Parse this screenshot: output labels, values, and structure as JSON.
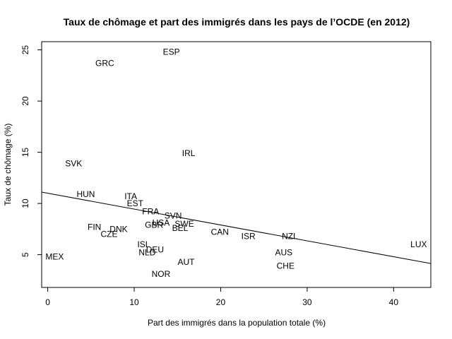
{
  "chart_data": {
    "type": "scatter",
    "title": "Taux de chômage et part des immigrés dans les pays de l’OCDE (en 2012)",
    "xlabel": "Part des immigrés dans la population totale (%)",
    "ylabel": "Taux de chômage (%)",
    "xlim": [
      -0.7,
      44.3
    ],
    "ylim": [
      1.8,
      25.8
    ],
    "x_ticks": [
      0,
      10,
      20,
      30,
      40
    ],
    "y_ticks": [
      5,
      10,
      15,
      20,
      25
    ],
    "grid": false,
    "points": [
      {
        "label": "ESP",
        "x": 14.3,
        "y": 24.8
      },
      {
        "label": "GRC",
        "x": 6.6,
        "y": 23.7
      },
      {
        "label": "IRL",
        "x": 16.3,
        "y": 14.9
      },
      {
        "label": "SVK",
        "x": 3.0,
        "y": 13.9
      },
      {
        "label": "HUN",
        "x": 4.4,
        "y": 10.9
      },
      {
        "label": "ITA",
        "x": 9.6,
        "y": 10.7
      },
      {
        "label": "EST",
        "x": 10.1,
        "y": 10.0
      },
      {
        "label": "FRA",
        "x": 11.9,
        "y": 9.2
      },
      {
        "label": "SVN",
        "x": 14.5,
        "y": 8.8
      },
      {
        "label": "GBR",
        "x": 12.3,
        "y": 7.9
      },
      {
        "label": "USA",
        "x": 13.1,
        "y": 8.1
      },
      {
        "label": "SWE",
        "x": 15.8,
        "y": 8.0
      },
      {
        "label": "BEL",
        "x": 15.3,
        "y": 7.6
      },
      {
        "label": "FIN",
        "x": 5.4,
        "y": 7.7
      },
      {
        "label": "DNK",
        "x": 8.2,
        "y": 7.5
      },
      {
        "label": "CZE",
        "x": 7.1,
        "y": 7.0
      },
      {
        "label": "CAN",
        "x": 19.9,
        "y": 7.2
      },
      {
        "label": "ISR",
        "x": 23.2,
        "y": 6.8
      },
      {
        "label": "NZL",
        "x": 28.0,
        "y": 6.8
      },
      {
        "label": "LUX",
        "x": 42.9,
        "y": 6.0
      },
      {
        "label": "ISL",
        "x": 11.1,
        "y": 6.0
      },
      {
        "label": "DEU",
        "x": 12.4,
        "y": 5.5
      },
      {
        "label": "NLD",
        "x": 11.5,
        "y": 5.2
      },
      {
        "label": "AUS",
        "x": 27.3,
        "y": 5.2
      },
      {
        "label": "MEX",
        "x": 0.8,
        "y": 4.8
      },
      {
        "label": "AUT",
        "x": 16.0,
        "y": 4.3
      },
      {
        "label": "CHE",
        "x": 27.5,
        "y": 3.9
      },
      {
        "label": "NOR",
        "x": 13.1,
        "y": 3.1
      }
    ],
    "regression_line": {
      "intercept": 11.0,
      "slope": -0.155
    }
  }
}
